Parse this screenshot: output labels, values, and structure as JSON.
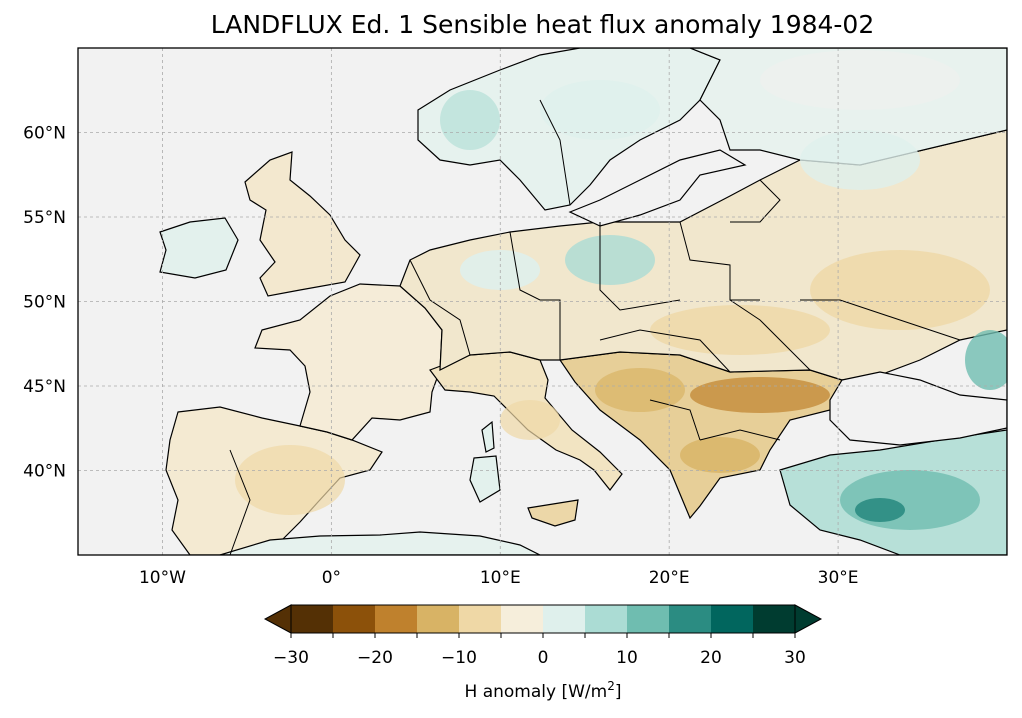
{
  "title": "LANDFLUX Ed. 1 Sensible heat flux anomaly 1984-02",
  "map": {
    "lon_range": [
      -15,
      40
    ],
    "lat_range": [
      35,
      65
    ],
    "lon_ticks": [
      -10,
      0,
      10,
      20,
      30
    ],
    "lon_tick_labels": [
      "10°W",
      "0°",
      "10°E",
      "20°E",
      "30°E"
    ],
    "lat_ticks": [
      40,
      45,
      50,
      55,
      60
    ],
    "lat_tick_labels": [
      "40°N",
      "45°N",
      "50°N",
      "55°N",
      "60°N"
    ],
    "gridlines": true,
    "ocean_color": "#f2f2f2",
    "coastline_color": "#000000"
  },
  "colorbar": {
    "label": "H anomaly [W/m²]",
    "label_prefix": "H anomaly [W/m",
    "label_sup": "2",
    "label_suffix": "]",
    "ticks": [
      -30,
      -20,
      -10,
      0,
      10,
      20,
      30
    ],
    "tick_labels": [
      "−30",
      "−20",
      "−10",
      "0",
      "10",
      "20",
      "30"
    ],
    "levels": [
      -30,
      -25,
      -20,
      -15,
      -10,
      -5,
      0,
      5,
      10,
      15,
      20,
      25,
      30
    ],
    "colors": [
      "#543005",
      "#8c510a",
      "#bf812d",
      "#d8b365",
      "#efd8a6",
      "#f6eedb",
      "#dff0ec",
      "#abdcd4",
      "#6fbdb0",
      "#2b8c82",
      "#01665e",
      "#003c30"
    ],
    "extend": "both"
  }
}
